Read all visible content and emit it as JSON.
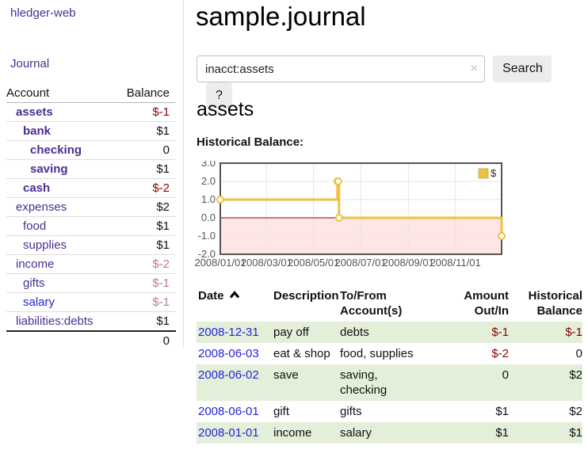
{
  "app": {
    "title": "hledger-web"
  },
  "colors": {
    "visited_link": "#4B2D93",
    "unvisited_link": "#2323DD",
    "negative_strong": "#8B0000",
    "negative_muted": "#C07C7C",
    "row_stripe_green": "#E3EFD9",
    "chart_line": "#EDC240",
    "zero_line": "#8B0000",
    "negative_region": "rgba(255,0,0,0.10)"
  },
  "sidebar": {
    "journal_label": "Journal",
    "accounts_table": {
      "headers": {
        "account": "Account",
        "balance": "Balance"
      },
      "rows": [
        {
          "account": "assets",
          "level": 1,
          "bold": true,
          "balance": "$-1",
          "balance_class": "red",
          "link_style": "visited"
        },
        {
          "account": "bank",
          "level": 2,
          "bold": true,
          "balance": "$1",
          "balance_class": "",
          "link_style": "visited"
        },
        {
          "account": "checking",
          "level": 3,
          "bold": true,
          "balance": "0",
          "balance_class": "",
          "link_style": "visited"
        },
        {
          "account": "saving",
          "level": 3,
          "bold": true,
          "balance": "$1",
          "balance_class": "",
          "link_style": "visited"
        },
        {
          "account": "cash",
          "level": 2,
          "bold": true,
          "balance": "$-2",
          "balance_class": "red",
          "link_style": "visited"
        },
        {
          "account": "expenses",
          "level": 1,
          "bold": false,
          "balance": "$2",
          "balance_class": "",
          "link_style": "visited"
        },
        {
          "account": "food",
          "level": 2,
          "bold": false,
          "balance": "$1",
          "balance_class": "",
          "link_style": "visited"
        },
        {
          "account": "supplies",
          "level": 2,
          "bold": false,
          "balance": "$1",
          "balance_class": "",
          "link_style": "visited"
        },
        {
          "account": "income",
          "level": 1,
          "bold": false,
          "balance": "$-2",
          "balance_class": "red-muted",
          "link_style": "visited"
        },
        {
          "account": "gifts",
          "level": 2,
          "bold": false,
          "balance": "$-1",
          "balance_class": "red-muted",
          "link_style": "visited"
        },
        {
          "account": "salary",
          "level": 2,
          "bold": false,
          "balance": "$-1",
          "balance_class": "red-muted",
          "link_style": "unvisited"
        },
        {
          "account": "liabilities:debts",
          "level": 1,
          "bold": false,
          "balance": "$1",
          "balance_class": "",
          "link_style": "visited"
        }
      ],
      "total": "0"
    }
  },
  "main": {
    "title": "sample.journal",
    "search": {
      "query": "inacct:assets",
      "clear_glyph": "×",
      "clear_icon": "clear-x-icon",
      "button_label": "Search",
      "help_label": "?"
    },
    "account_heading": "assets",
    "chart_label": "Historical Balance:"
  },
  "chart_data": {
    "type": "line",
    "title": "Historical Balance:",
    "steps": true,
    "x_range": [
      "2008-01-01",
      "2008-12-31"
    ],
    "ylim": [
      -2,
      3
    ],
    "y_ticks": [
      3,
      2,
      1,
      0,
      -1,
      -2
    ],
    "x_ticks": [
      "2008/01/01",
      "2008/03/01",
      "2008/05/01",
      "2008/07/01",
      "2008/09/01",
      "2008/11/01"
    ],
    "grid": true,
    "legend_position": "top-right",
    "series": [
      {
        "name": "$",
        "color": "#EDC240",
        "points": [
          {
            "date": "2008-01-01",
            "value": 1
          },
          {
            "date": "2008-06-01",
            "value": 2
          },
          {
            "date": "2008-06-02",
            "value": 2
          },
          {
            "date": "2008-06-03",
            "value": 0
          },
          {
            "date": "2008-12-31",
            "value": -1
          }
        ]
      }
    ]
  },
  "register_table": {
    "headers": [
      "Date",
      "Description",
      "To/From Account(s)",
      "Amount Out/In",
      "Historical Balance"
    ],
    "sort_icon": "chevron-up-icon",
    "rows": [
      {
        "date": "2008-12-31",
        "description": "pay off",
        "accounts": "debts",
        "amount": "$-1",
        "balance": "$-1"
      },
      {
        "date": "2008-06-03",
        "description": "eat & shop",
        "accounts": "food, supplies",
        "amount": "$-2",
        "balance": "0"
      },
      {
        "date": "2008-06-02",
        "description": "save",
        "accounts": "saving,\nchecking",
        "amount": "0",
        "balance": "$2"
      },
      {
        "date": "2008-06-01",
        "description": "gift",
        "accounts": "gifts",
        "amount": "$1",
        "balance": "$2"
      },
      {
        "date": "2008-01-01",
        "description": "income",
        "accounts": "salary",
        "amount": "$1",
        "balance": "$1"
      }
    ]
  }
}
